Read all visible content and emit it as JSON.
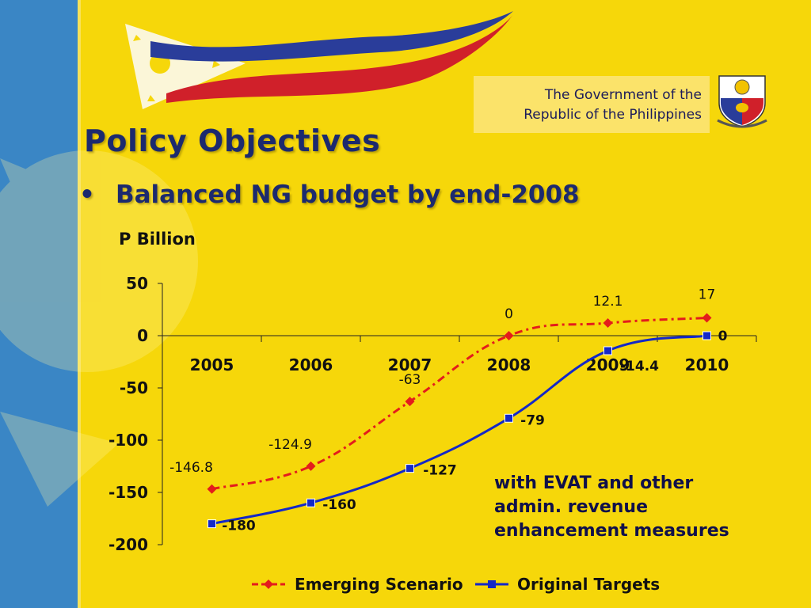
{
  "header": {
    "government_lines": [
      "The Government of the",
      "Republic of the Philippines"
    ],
    "seal_icon": "philippine-seal-icon",
    "banner_icon": "philippine-flag-banner-icon"
  },
  "slide": {
    "title": "Policy Objectives",
    "bullet": "Balanced NG budget by end-2008",
    "unit": "P Billion",
    "note_lines": [
      "with EVAT and other",
      "admin. revenue",
      "enhancement measures"
    ]
  },
  "colors": {
    "background": "#f6d70a",
    "left_band": "#3a86c5",
    "emerging": "#e41c1c",
    "original": "#1428c8",
    "title": "#1c2a6e"
  },
  "chart_data": {
    "type": "line",
    "categories": [
      "2005",
      "2006",
      "2007",
      "2008",
      "2009",
      "2010"
    ],
    "ylim": [
      -200,
      50
    ],
    "yticks": [
      50,
      0,
      -50,
      -100,
      -150,
      -200
    ],
    "series": [
      {
        "name": "Emerging Scenario",
        "color": "#e41c1c",
        "style": "dashed",
        "marker": "diamond",
        "values": [
          -146.8,
          -124.9,
          -63,
          0,
          12.1,
          17
        ],
        "labels": [
          "-146.8",
          "-124.9",
          "-63",
          "0",
          "12.1",
          "17"
        ]
      },
      {
        "name": "Original Targets",
        "color": "#1428c8",
        "style": "solid",
        "marker": "square",
        "values": [
          -180,
          -160,
          -127,
          -79,
          -14.4,
          0
        ],
        "labels": [
          "-180",
          "-160",
          "-127",
          "-79",
          "-14.4",
          "0"
        ]
      }
    ],
    "legend": "bottom",
    "grid": false
  }
}
